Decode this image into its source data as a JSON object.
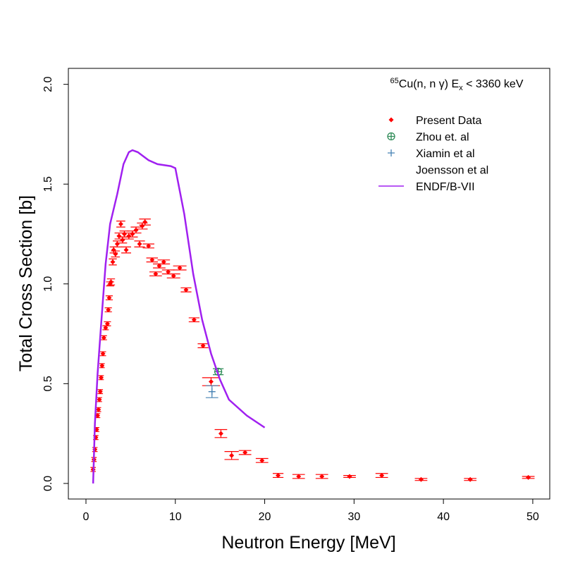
{
  "chart_data": {
    "type": "scatter",
    "title": {
      "sup": "65",
      "main": "Cu(n, n γ) E",
      "sub": "x",
      "rest": " < 3360 keV"
    },
    "x_label": "Neutron Energy [MeV]",
    "y_label": "Total Cross Section [b]",
    "xlim": [
      -1.97,
      51.9
    ],
    "ylim": [
      -0.078,
      2.08
    ],
    "xticks": [
      0,
      10,
      20,
      30,
      40,
      50
    ],
    "yticks": [
      {
        "value": 0,
        "label": "0.0"
      },
      {
        "value": 0.5,
        "label": "0.5"
      },
      {
        "value": 1,
        "label": "1.0"
      },
      {
        "value": 1.5,
        "label": "1.5"
      },
      {
        "value": 2,
        "label": "2.0"
      }
    ],
    "legend": "top-right",
    "series": [
      {
        "name": "Present Data",
        "color": "#ff0000",
        "marker": "diamond",
        "x": [
          0.8,
          0.9,
          1.0,
          1.1,
          1.2,
          1.3,
          1.4,
          1.5,
          1.6,
          1.7,
          1.8,
          1.9,
          2.0,
          2.2,
          2.4,
          2.5,
          2.6,
          2.7,
          2.8,
          3.0,
          3.1,
          3.3,
          3.5,
          3.7,
          3.9,
          4.1,
          4.3,
          4.5,
          4.8,
          5.2,
          5.6,
          6.0,
          6.3,
          6.6,
          7.0,
          7.4,
          7.8,
          8.2,
          8.7,
          9.2,
          9.8,
          10.5,
          11.2,
          12.1,
          13.1,
          14.0,
          15.1,
          16.3,
          17.8,
          19.7,
          21.5,
          23.8,
          26.4,
          29.5,
          33.1,
          37.5,
          43.0,
          49.5
        ],
        "values": [
          0.07,
          0.12,
          0.17,
          0.23,
          0.27,
          0.34,
          0.37,
          0.42,
          0.46,
          0.53,
          0.59,
          0.65,
          0.73,
          0.78,
          0.8,
          0.87,
          0.93,
          1.0,
          1.01,
          1.11,
          1.17,
          1.15,
          1.2,
          1.24,
          1.3,
          1.22,
          1.25,
          1.17,
          1.24,
          1.25,
          1.27,
          1.2,
          1.29,
          1.31,
          1.19,
          1.12,
          1.05,
          1.09,
          1.11,
          1.06,
          1.04,
          1.08,
          0.97,
          0.82,
          0.69,
          0.51,
          0.25,
          0.14,
          0.155,
          0.115,
          0.04,
          0.035,
          0.035,
          0.035,
          0.04,
          0.02,
          0.02,
          0.03
        ],
        "xerr": [
          0.3,
          0.3,
          0.3,
          0.3,
          0.3,
          0.3,
          0.3,
          0.3,
          0.3,
          0.3,
          0.3,
          0.35,
          0.35,
          0.35,
          0.4,
          0.4,
          0.4,
          0.45,
          0.45,
          0.45,
          0.45,
          0.5,
          0.5,
          0.5,
          0.5,
          0.5,
          0.55,
          0.55,
          0.55,
          0.6,
          0.6,
          0.6,
          0.6,
          0.65,
          0.65,
          0.65,
          0.7,
          0.7,
          0.7,
          0.7,
          0.75,
          0.75,
          0.6,
          0.6,
          0.6,
          1.0,
          0.7,
          0.8,
          0.7,
          0.7,
          0.6,
          0.7,
          0.7,
          0.7,
          0.7,
          0.7,
          0.7,
          0.7
        ],
        "yerr": [
          0.01,
          0.01,
          0.01,
          0.01,
          0.01,
          0.01,
          0.01,
          0.01,
          0.01,
          0.01,
          0.01,
          0.01,
          0.01,
          0.01,
          0.01,
          0.01,
          0.01,
          0.01,
          0.015,
          0.015,
          0.015,
          0.015,
          0.015,
          0.015,
          0.015,
          0.015,
          0.015,
          0.015,
          0.015,
          0.015,
          0.015,
          0.015,
          0.015,
          0.015,
          0.01,
          0.01,
          0.01,
          0.01,
          0.01,
          0.01,
          0.01,
          0.01,
          0.01,
          0.01,
          0.01,
          0.02,
          0.02,
          0.02,
          0.01,
          0.01,
          0.01,
          0.01,
          0.01,
          0.005,
          0.01,
          0.005,
          0.005,
          0.005
        ]
      },
      {
        "name": "Zhou et. al",
        "color": "#2e8b57",
        "marker": "circle-plus",
        "x": [
          14.8
        ],
        "values": [
          0.56
        ],
        "xerr": [
          0.6
        ],
        "yerr": [
          0.015
        ]
      },
      {
        "name": "Xiamin et al",
        "color": "#4682b4",
        "marker": "plus",
        "x": [
          14.1
        ],
        "values": [
          0.46
        ],
        "xerr": [
          0.7
        ],
        "yerr": [
          0.03
        ]
      },
      {
        "name": "Joensson et al",
        "color": "#000000",
        "marker": "none",
        "x": [],
        "values": [],
        "xerr": [],
        "yerr": []
      },
      {
        "name": "ENDF/B-VII",
        "color": "#a020f0",
        "marker": "line",
        "x": [
          0.8,
          1.0,
          1.3,
          1.7,
          2.2,
          2.7,
          3.5,
          4.2,
          4.8,
          5.2,
          5.8,
          7.0,
          8.0,
          9.5,
          10.0,
          11.0,
          12.0,
          13.0,
          14.0,
          15.0,
          16.0,
          18.0,
          20.0
        ],
        "values": [
          0.0,
          0.3,
          0.55,
          0.8,
          1.1,
          1.3,
          1.45,
          1.6,
          1.66,
          1.67,
          1.66,
          1.62,
          1.6,
          1.59,
          1.58,
          1.35,
          1.05,
          0.82,
          0.65,
          0.52,
          0.42,
          0.34,
          0.28
        ]
      }
    ]
  }
}
